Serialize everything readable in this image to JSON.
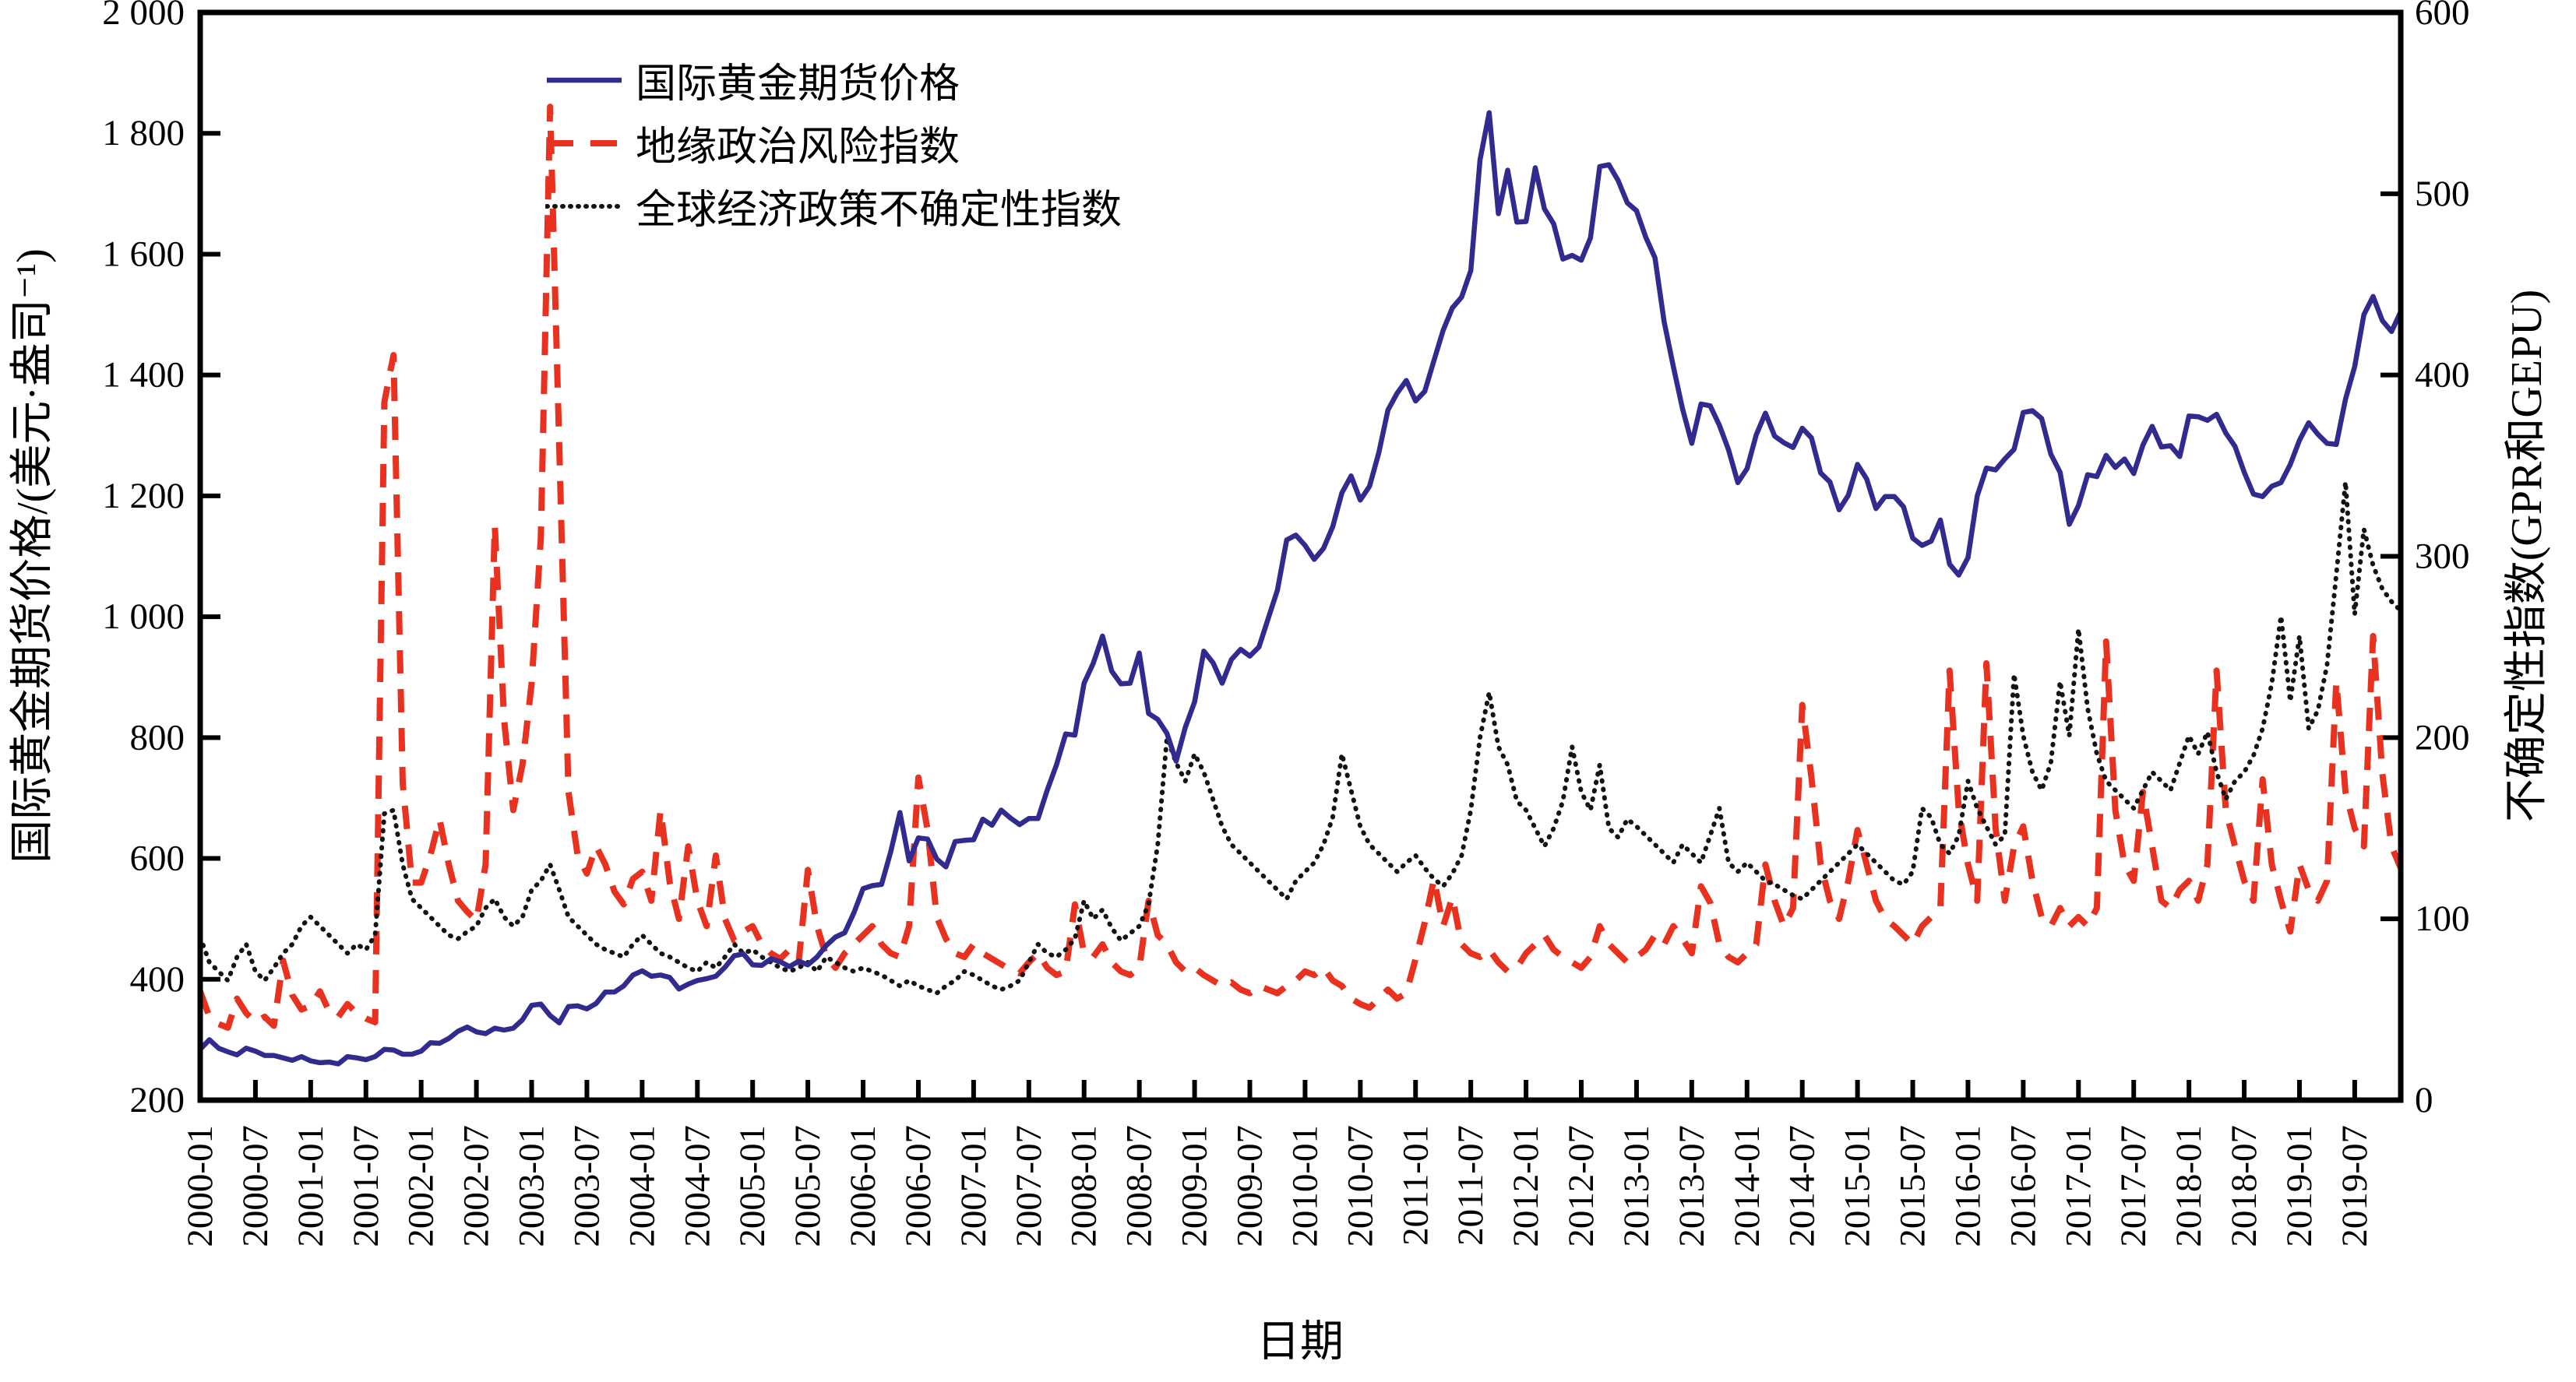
{
  "figure": {
    "background": "#ffffff"
  },
  "chart_data": {
    "type": "line",
    "xlabel": "日期",
    "grid": false,
    "legend_position": "upper-left-inside",
    "plot": {
      "x0": 257,
      "x1": 3082,
      "y0": 16,
      "y1": 1413
    },
    "left_axis": {
      "label": "国际黄金期货价格/(美元·盎司⁻¹)",
      "min": 200,
      "max": 2000,
      "step": 200,
      "tick_labels": [
        "200",
        "400",
        "600",
        "800",
        "1 000",
        "1 200",
        "1 400",
        "1 600",
        "1 800",
        "2 000"
      ]
    },
    "right_axis": {
      "label": "不确定性指数(GPR和GEPU)",
      "min": 0,
      "max": 600,
      "step": 100,
      "tick_labels": [
        "0",
        "100",
        "200",
        "300",
        "400",
        "500",
        "600"
      ]
    },
    "x_tick_every_months": 6,
    "months": [
      "2000-01",
      "2000-02",
      "2000-03",
      "2000-04",
      "2000-05",
      "2000-06",
      "2000-07",
      "2000-08",
      "2000-09",
      "2000-10",
      "2000-11",
      "2000-12",
      "2001-01",
      "2001-02",
      "2001-03",
      "2001-04",
      "2001-05",
      "2001-06",
      "2001-07",
      "2001-08",
      "2001-09",
      "2001-10",
      "2001-11",
      "2001-12",
      "2002-01",
      "2002-02",
      "2002-03",
      "2002-04",
      "2002-05",
      "2002-06",
      "2002-07",
      "2002-08",
      "2002-09",
      "2002-10",
      "2002-11",
      "2002-12",
      "2003-01",
      "2003-02",
      "2003-03",
      "2003-04",
      "2003-05",
      "2003-06",
      "2003-07",
      "2003-08",
      "2003-09",
      "2003-10",
      "2003-11",
      "2003-12",
      "2004-01",
      "2004-02",
      "2004-03",
      "2004-04",
      "2004-05",
      "2004-06",
      "2004-07",
      "2004-08",
      "2004-09",
      "2004-10",
      "2004-11",
      "2004-12",
      "2005-01",
      "2005-02",
      "2005-03",
      "2005-04",
      "2005-05",
      "2005-06",
      "2005-07",
      "2005-08",
      "2005-09",
      "2005-10",
      "2005-11",
      "2005-12",
      "2006-01",
      "2006-02",
      "2006-03",
      "2006-04",
      "2006-05",
      "2006-06",
      "2006-07",
      "2006-08",
      "2006-09",
      "2006-10",
      "2006-11",
      "2006-12",
      "2007-01",
      "2007-02",
      "2007-03",
      "2007-04",
      "2007-05",
      "2007-06",
      "2007-07",
      "2007-08",
      "2007-09",
      "2007-10",
      "2007-11",
      "2007-12",
      "2008-01",
      "2008-02",
      "2008-03",
      "2008-04",
      "2008-05",
      "2008-06",
      "2008-07",
      "2008-08",
      "2008-09",
      "2008-10",
      "2008-11",
      "2008-12",
      "2009-01",
      "2009-02",
      "2009-03",
      "2009-04",
      "2009-05",
      "2009-06",
      "2009-07",
      "2009-08",
      "2009-09",
      "2009-10",
      "2009-11",
      "2009-12",
      "2010-01",
      "2010-02",
      "2010-03",
      "2010-04",
      "2010-05",
      "2010-06",
      "2010-07",
      "2010-08",
      "2010-09",
      "2010-10",
      "2010-11",
      "2010-12",
      "2011-01",
      "2011-02",
      "2011-03",
      "2011-04",
      "2011-05",
      "2011-06",
      "2011-07",
      "2011-08",
      "2011-09",
      "2011-10",
      "2011-11",
      "2011-12",
      "2012-01",
      "2012-02",
      "2012-03",
      "2012-04",
      "2012-05",
      "2012-06",
      "2012-07",
      "2012-08",
      "2012-09",
      "2012-10",
      "2012-11",
      "2012-12",
      "2013-01",
      "2013-02",
      "2013-03",
      "2013-04",
      "2013-05",
      "2013-06",
      "2013-07",
      "2013-08",
      "2013-09",
      "2013-10",
      "2013-11",
      "2013-12",
      "2014-01",
      "2014-02",
      "2014-03",
      "2014-04",
      "2014-05",
      "2014-06",
      "2014-07",
      "2014-08",
      "2014-09",
      "2014-10",
      "2014-11",
      "2014-12",
      "2015-01",
      "2015-02",
      "2015-03",
      "2015-04",
      "2015-05",
      "2015-06",
      "2015-07",
      "2015-08",
      "2015-09",
      "2015-10",
      "2015-11",
      "2015-12",
      "2016-01",
      "2016-02",
      "2016-03",
      "2016-04",
      "2016-05",
      "2016-06",
      "2016-07",
      "2016-08",
      "2016-09",
      "2016-10",
      "2016-11",
      "2016-12",
      "2017-01",
      "2017-02",
      "2017-03",
      "2017-04",
      "2017-05",
      "2017-06",
      "2017-07",
      "2017-08",
      "2017-09",
      "2017-10",
      "2017-11",
      "2017-12",
      "2018-01",
      "2018-02",
      "2018-03",
      "2018-04",
      "2018-05",
      "2018-06",
      "2018-07",
      "2018-08",
      "2018-09",
      "2018-10",
      "2018-11",
      "2018-12",
      "2019-01",
      "2019-02",
      "2019-03",
      "2019-04",
      "2019-05",
      "2019-06",
      "2019-07",
      "2019-08",
      "2019-09",
      "2019-10",
      "2019-11",
      "2019-12"
    ],
    "series": [
      {
        "name": "国际黄金期货价格",
        "axis": "left",
        "style": "solid",
        "color": "#312b90",
        "width": 6.5,
        "values": [
          284,
          300,
          286,
          280,
          275,
          286,
          281,
          274,
          274,
          270,
          266,
          272,
          265,
          262,
          263,
          260,
          272,
          270,
          267,
          272,
          284,
          283,
          276,
          276,
          281,
          295,
          294,
          302,
          314,
          321,
          313,
          310,
          319,
          316,
          319,
          333,
          357,
          359,
          340,
          328,
          355,
          356,
          351,
          360,
          379,
          379,
          389,
          407,
          414,
          405,
          407,
          403,
          384,
          392,
          398,
          401,
          405,
          420,
          439,
          442,
          424,
          423,
          434,
          429,
          421,
          430,
          424,
          437,
          456,
          470,
          477,
          510,
          550,
          555,
          557,
          611,
          676,
          596,
          634,
          632,
          599,
          586,
          628,
          630,
          631,
          665,
          655,
          680,
          667,
          656,
          666,
          666,
          713,
          755,
          806,
          804,
          890,
          923,
          968,
          910,
          889,
          890,
          940,
          840,
          830,
          807,
          761,
          817,
          859,
          943,
          924,
          890,
          929,
          946,
          935,
          950,
          997,
          1044,
          1127,
          1135,
          1118,
          1095,
          1113,
          1149,
          1205,
          1233,
          1193,
          1216,
          1271,
          1342,
          1370,
          1391,
          1357,
          1373,
          1424,
          1474,
          1511,
          1529,
          1573,
          1756,
          1834,
          1667,
          1739,
          1653,
          1654,
          1743,
          1675,
          1650,
          1592,
          1598,
          1590,
          1627,
          1745,
          1748,
          1722,
          1685,
          1672,
          1628,
          1594,
          1488,
          1414,
          1344,
          1287,
          1352,
          1349,
          1317,
          1276,
          1222,
          1245,
          1301,
          1337,
          1299,
          1288,
          1280,
          1312,
          1296,
          1238,
          1223,
          1177,
          1201,
          1252,
          1228,
          1179,
          1199,
          1199,
          1182,
          1130,
          1118,
          1125,
          1160,
          1087,
          1069,
          1098,
          1200,
          1246,
          1243,
          1261,
          1277,
          1338,
          1341,
          1328,
          1269,
          1239,
          1153,
          1184,
          1235,
          1232,
          1267,
          1247,
          1261,
          1237,
          1284,
          1315,
          1281,
          1283,
          1265,
          1332,
          1331,
          1325,
          1335,
          1304,
          1282,
          1239,
          1203,
          1199,
          1216,
          1222,
          1252,
          1292,
          1321,
          1302,
          1287,
          1285,
          1360,
          1414,
          1500,
          1530,
          1490,
          1472,
          1505
        ]
      },
      {
        "name": "地缘政治风险指数",
        "axis": "right",
        "style": "dashed",
        "color": "#e8321f",
        "width": 8,
        "values": [
          60,
          46,
          42,
          40,
          56,
          48,
          43,
          46,
          41,
          77,
          58,
          50,
          52,
          60,
          49,
          46,
          53,
          48,
          45,
          43,
          385,
          411,
          175,
          120,
          120,
          135,
          155,
          130,
          110,
          104,
          99,
          130,
          317,
          210,
          160,
          185,
          230,
          310,
          548,
          360,
          170,
          135,
          125,
          140,
          130,
          115,
          108,
          122,
          126,
          110,
          160,
          120,
          100,
          140,
          110,
          96,
          135,
          100,
          88,
          93,
          96,
          86,
          81,
          78,
          83,
          76,
          127,
          96,
          79,
          73,
          81,
          86,
          91,
          96,
          86,
          81,
          79,
          96,
          178,
          149,
          101,
          89,
          81,
          79,
          86,
          81,
          78,
          75,
          72,
          70,
          76,
          81,
          73,
          69,
          71,
          108,
          81,
          79,
          86,
          76,
          71,
          69,
          73,
          110,
          91,
          86,
          76,
          71,
          73,
          69,
          66,
          63,
          65,
          61,
          59,
          63,
          61,
          59,
          63,
          66,
          71,
          69,
          73,
          66,
          63,
          56,
          53,
          51,
          56,
          61,
          56,
          59,
          78,
          98,
          122,
          96,
          112,
          86,
          81,
          79,
          83,
          76,
          71,
          73,
          81,
          86,
          91,
          83,
          79,
          76,
          73,
          79,
          96,
          86,
          81,
          76,
          79,
          83,
          91,
          86,
          96,
          89,
          81,
          118,
          109,
          86,
          79,
          76,
          81,
          86,
          130,
          110,
          96,
          106,
          218,
          178,
          130,
          110,
          100,
          121,
          149,
          130,
          110,
          100,
          96,
          91,
          86,
          96,
          101,
          106,
          237,
          160,
          130,
          110,
          241,
          150,
          110,
          140,
          151,
          121,
          101,
          96,
          106,
          96,
          101,
          96,
          106,
          253,
          160,
          130,
          121,
          170,
          140,
          110,
          106,
          116,
          121,
          110,
          130,
          237,
          160,
          140,
          121,
          110,
          177,
          130,
          110,
          93,
          130,
          116,
          110,
          121,
          231,
          170,
          150,
          140,
          256,
          180,
          140,
          128
        ]
      },
      {
        "name": "全球经济政策不确定性指数",
        "axis": "right",
        "style": "dotted",
        "color": "#141414",
        "width": 6,
        "values": [
          90,
          76,
          71,
          66,
          79,
          86,
          71,
          66,
          73,
          81,
          86,
          96,
          101,
          96,
          91,
          86,
          81,
          86,
          83,
          91,
          158,
          160,
          130,
          111,
          106,
          101,
          96,
          91,
          89,
          93,
          96,
          106,
          111,
          101,
          96,
          101,
          116,
          121,
          130,
          116,
          101,
          96,
          91,
          86,
          83,
          81,
          79,
          86,
          91,
          86,
          81,
          79,
          76,
          73,
          71,
          76,
          73,
          79,
          86,
          81,
          83,
          79,
          76,
          73,
          71,
          73,
          76,
          71,
          79,
          76,
          73,
          71,
          73,
          71,
          69,
          66,
          63,
          66,
          63,
          61,
          59,
          63,
          66,
          71,
          69,
          66,
          63,
          61,
          63,
          66,
          76,
          86,
          81,
          79,
          83,
          89,
          110,
          100,
          105,
          95,
          88,
          92,
          96,
          108,
          141,
          200,
          186,
          176,
          191,
          181,
          166,
          151,
          141,
          136,
          131,
          126,
          121,
          116,
          111,
          121,
          126,
          131,
          141,
          156,
          191,
          171,
          151,
          141,
          136,
          131,
          126,
          131,
          135,
          128,
          122,
          118,
          125,
          135,
          160,
          200,
          225,
          195,
          185,
          165,
          160,
          150,
          140,
          150,
          165,
          195,
          170,
          160,
          185,
          150,
          145,
          155,
          151,
          146,
          141,
          136,
          131,
          141,
          136,
          131,
          146,
          161,
          131,
          126,
          131,
          126,
          121,
          119,
          116,
          113,
          111,
          116,
          121,
          126,
          131,
          136,
          141,
          136,
          131,
          126,
          121,
          119,
          126,
          161,
          156,
          141,
          136,
          146,
          176,
          161,
          151,
          141,
          146,
          235,
          201,
          181,
          171,
          186,
          231,
          201,
          260,
          216,
          191,
          176,
          171,
          166,
          161,
          171,
          181,
          176,
          171,
          186,
          201,
          191,
          203,
          181,
          166,
          176,
          181,
          190,
          205,
          230,
          267,
          220,
          256,
          205,
          215,
          240,
          290,
          341,
          268,
          315,
          295,
          282,
          275,
          270
        ]
      }
    ],
    "axis_style": {
      "spine_color": "#000000",
      "spine_width": 7,
      "tick_length": 26,
      "tick_width": 6
    }
  }
}
